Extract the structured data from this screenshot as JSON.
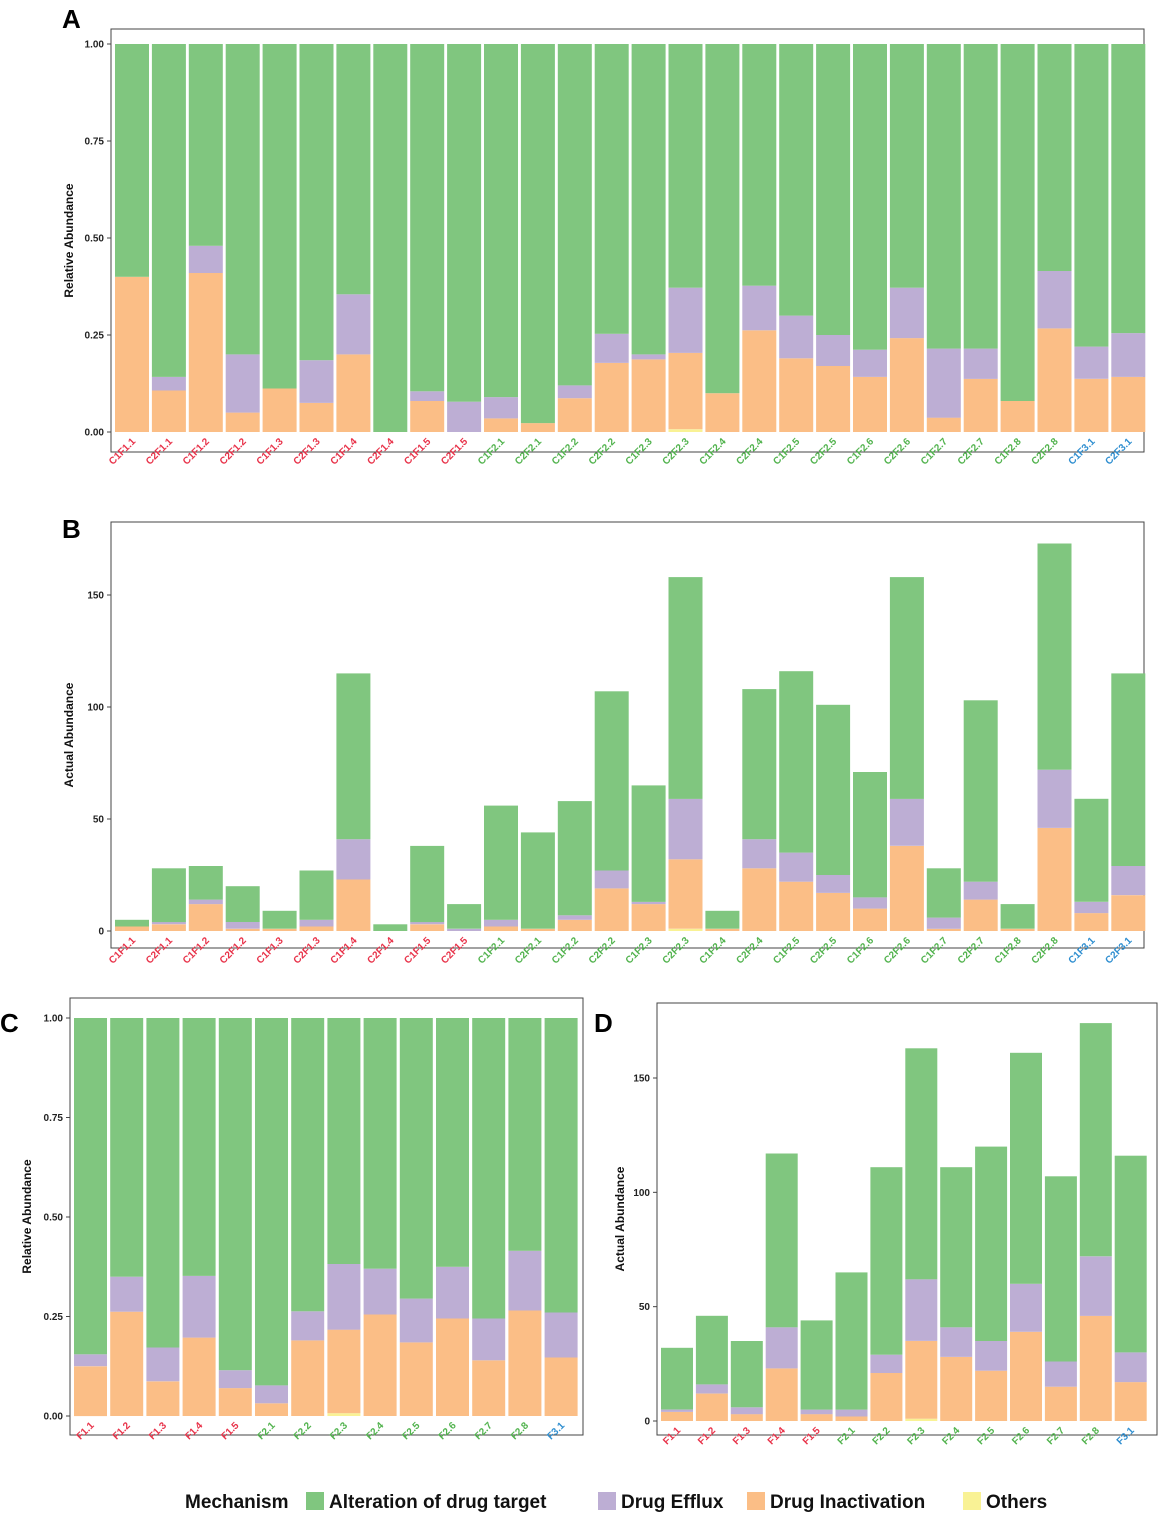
{
  "colors": {
    "alteration": "#80C67F",
    "efflux": "#BDAED4",
    "inactivation": "#FBBE86",
    "others": "#F9F295",
    "label_red": "#E8334A",
    "label_green": "#52B34E",
    "label_blue": "#2E8ED0"
  },
  "legend": {
    "title": "Mechanism",
    "items": [
      {
        "key": "alteration",
        "label": "Alteration of drug target"
      },
      {
        "key": "efflux",
        "label": "Drug Efflux"
      },
      {
        "key": "inactivation",
        "label": "Drug Inactivation"
      },
      {
        "key": "others",
        "label": "Others"
      }
    ]
  },
  "chart_data": [
    {
      "panel": "A",
      "type": "bar",
      "stacked": true,
      "ylabel": "Relative Abundance",
      "ylim": [
        0,
        1
      ],
      "yticks": [
        "0.00",
        "0.25",
        "0.50",
        "0.75",
        "1.00"
      ],
      "categories": [
        "C1F1.1",
        "C2F1.1",
        "C1F1.2",
        "C2F1.2",
        "C1F1.3",
        "C2F1.3",
        "C1F1.4",
        "C2F1.4",
        "C1F1.5",
        "C2F1.5",
        "C1F2.1",
        "C2F2.1",
        "C1F2.2",
        "C2F2.2",
        "C1F2.3",
        "C2F2.3",
        "C1F2.4",
        "C2F2.4",
        "C1F2.5",
        "C2F2.5",
        "C1F2.6",
        "C2F2.6",
        "C1F2.7",
        "C2F2.7",
        "C1F2.8",
        "C2F2.8",
        "C1F3.1",
        "C2F3.1"
      ],
      "category_groups": [
        "red",
        "red",
        "red",
        "red",
        "red",
        "red",
        "red",
        "red",
        "red",
        "red",
        "green",
        "green",
        "green",
        "green",
        "green",
        "green",
        "green",
        "green",
        "green",
        "green",
        "green",
        "green",
        "green",
        "green",
        "green",
        "green",
        "blue",
        "blue"
      ],
      "series": [
        {
          "key": "others",
          "name": "Others",
          "values": [
            0,
            0,
            0,
            0,
            0,
            0,
            0,
            0,
            0,
            0,
            0,
            0,
            0,
            0,
            0,
            0.007,
            0,
            0,
            0,
            0,
            0,
            0,
            0,
            0,
            0,
            0,
            0,
            0
          ]
        },
        {
          "key": "inactivation",
          "name": "Drug Inactivation",
          "values": [
            0.4,
            0.107,
            0.41,
            0.05,
            0.112,
            0.075,
            0.2,
            0,
            0.08,
            0,
            0.035,
            0.023,
            0.087,
            0.178,
            0.187,
            0.197,
            0.1,
            0.262,
            0.19,
            0.17,
            0.142,
            0.242,
            0.037,
            0.137,
            0.08,
            0.267,
            0.137,
            0.142
          ]
        },
        {
          "key": "efflux",
          "name": "Drug Efflux",
          "values": [
            0,
            0.035,
            0.07,
            0.15,
            0,
            0.11,
            0.155,
            0,
            0.025,
            0.078,
            0.055,
            0,
            0.033,
            0.075,
            0.013,
            0.168,
            0,
            0.115,
            0.11,
            0.08,
            0.07,
            0.13,
            0.178,
            0.078,
            0,
            0.148,
            0.083,
            0.113
          ]
        },
        {
          "key": "alteration",
          "name": "Alteration of drug target",
          "values": [
            0.6,
            0.858,
            0.52,
            0.8,
            0.888,
            0.815,
            0.645,
            1.0,
            0.895,
            0.922,
            0.91,
            0.977,
            0.88,
            0.747,
            0.8,
            0.628,
            0.9,
            0.623,
            0.7,
            0.75,
            0.788,
            0.628,
            0.785,
            0.785,
            0.92,
            0.585,
            0.78,
            0.745
          ]
        }
      ]
    },
    {
      "panel": "B",
      "type": "bar",
      "stacked": true,
      "ylabel": "Actual Abundance",
      "ylim": [
        0,
        175
      ],
      "yticks": [
        "0",
        "50",
        "100",
        "150"
      ],
      "categories": [
        "C1F1.1",
        "C2F1.1",
        "C1F1.2",
        "C2F1.2",
        "C1F1.3",
        "C2F1.3",
        "C1F1.4",
        "C2F1.4",
        "C1F1.5",
        "C2F1.5",
        "C1F2.1",
        "C2F2.1",
        "C1F2.2",
        "C2F2.2",
        "C1F2.3",
        "C2F2.3",
        "C1F2.4",
        "C2F2.4",
        "C1F2.5",
        "C2F2.5",
        "C1F2.6",
        "C2F2.6",
        "C1F2.7",
        "C2F2.7",
        "C1F2.8",
        "C2F2.8",
        "C1F3.1",
        "C2F3.1"
      ],
      "category_groups": [
        "red",
        "red",
        "red",
        "red",
        "red",
        "red",
        "red",
        "red",
        "red",
        "red",
        "green",
        "green",
        "green",
        "green",
        "green",
        "green",
        "green",
        "green",
        "green",
        "green",
        "green",
        "green",
        "green",
        "green",
        "green",
        "green",
        "blue",
        "blue"
      ],
      "series": [
        {
          "key": "others",
          "name": "Others",
          "values": [
            0,
            0,
            0,
            0,
            0,
            0,
            0,
            0,
            0,
            0,
            0,
            0,
            0,
            0,
            0,
            1,
            0,
            0,
            0,
            0,
            0,
            0,
            0,
            0,
            0,
            0,
            0,
            0
          ]
        },
        {
          "key": "inactivation",
          "name": "Drug Inactivation",
          "values": [
            2,
            3,
            12,
            1,
            1,
            2,
            23,
            0,
            3,
            0,
            2,
            1,
            5,
            19,
            12,
            31,
            1,
            28,
            22,
            17,
            10,
            38,
            1,
            14,
            1,
            46,
            8,
            16
          ]
        },
        {
          "key": "efflux",
          "name": "Drug Efflux",
          "values": [
            0,
            1,
            2,
            3,
            0,
            3,
            18,
            0,
            1,
            1,
            3,
            0,
            2,
            8,
            1,
            27,
            0,
            13,
            13,
            8,
            5,
            21,
            5,
            8,
            0,
            26,
            5,
            13
          ]
        },
        {
          "key": "alteration",
          "name": "Alteration of drug target",
          "values": [
            3,
            24,
            15,
            16,
            8,
            22,
            74,
            3,
            34,
            11,
            51,
            43,
            51,
            80,
            52,
            99,
            8,
            67,
            81,
            76,
            56,
            99,
            22,
            81,
            11,
            101,
            46,
            86
          ]
        }
      ]
    },
    {
      "panel": "C",
      "type": "bar",
      "stacked": true,
      "ylabel": "Relative Abundance",
      "ylim": [
        0,
        1
      ],
      "yticks": [
        "0.00",
        "0.25",
        "0.50",
        "0.75",
        "1.00"
      ],
      "categories": [
        "F1.1",
        "F1.2",
        "F1.3",
        "F1.4",
        "F1.5",
        "F2.1",
        "F2.2",
        "F2.3",
        "F2.4",
        "F2.5",
        "F2.6",
        "F2.7",
        "F2.8",
        "F3.1"
      ],
      "category_groups": [
        "red",
        "red",
        "red",
        "red",
        "red",
        "green",
        "green",
        "green",
        "green",
        "green",
        "green",
        "green",
        "green",
        "blue"
      ],
      "series": [
        {
          "key": "others",
          "name": "Others",
          "values": [
            0,
            0,
            0,
            0,
            0,
            0,
            0,
            0.007,
            0,
            0,
            0,
            0,
            0,
            0
          ]
        },
        {
          "key": "inactivation",
          "name": "Drug Inactivation",
          "values": [
            0.125,
            0.262,
            0.087,
            0.197,
            0.07,
            0.032,
            0.19,
            0.21,
            0.255,
            0.185,
            0.245,
            0.14,
            0.265,
            0.147
          ]
        },
        {
          "key": "efflux",
          "name": "Drug Efflux",
          "values": [
            0.03,
            0.088,
            0.085,
            0.155,
            0.045,
            0.045,
            0.073,
            0.165,
            0.115,
            0.11,
            0.13,
            0.105,
            0.15,
            0.113
          ]
        },
        {
          "key": "alteration",
          "name": "Alteration of drug target",
          "values": [
            0.845,
            0.65,
            0.828,
            0.648,
            0.885,
            0.923,
            0.737,
            0.618,
            0.63,
            0.705,
            0.625,
            0.755,
            0.585,
            0.74
          ]
        }
      ]
    },
    {
      "panel": "D",
      "type": "bar",
      "stacked": true,
      "ylabel": "Actual Abundance",
      "ylim": [
        0,
        180
      ],
      "yticks": [
        "0",
        "50",
        "100",
        "150"
      ],
      "categories": [
        "F1.1",
        "F1.2",
        "F1.3",
        "F1.4",
        "F1.5",
        "F2.1",
        "F2.2",
        "F2.3",
        "F2.4",
        "F2.5",
        "F2.6",
        "F2.7",
        "F2.8",
        "F3.1"
      ],
      "category_groups": [
        "red",
        "red",
        "red",
        "red",
        "red",
        "green",
        "green",
        "green",
        "green",
        "green",
        "green",
        "green",
        "green",
        "blue"
      ],
      "series": [
        {
          "key": "others",
          "name": "Others",
          "values": [
            0,
            0,
            0,
            0,
            0,
            0,
            0,
            1,
            0,
            0,
            0,
            0,
            0,
            0
          ]
        },
        {
          "key": "inactivation",
          "name": "Drug Inactivation",
          "values": [
            4,
            12,
            3,
            23,
            3,
            2,
            21,
            34,
            28,
            22,
            39,
            15,
            46,
            17
          ]
        },
        {
          "key": "efflux",
          "name": "Drug Efflux",
          "values": [
            1,
            4,
            3,
            18,
            2,
            3,
            8,
            27,
            13,
            13,
            21,
            11,
            26,
            13
          ]
        },
        {
          "key": "alteration",
          "name": "Alteration of drug target",
          "values": [
            27,
            30,
            29,
            76,
            39,
            60,
            82,
            101,
            70,
            85,
            101,
            81,
            102,
            86
          ]
        }
      ]
    }
  ]
}
